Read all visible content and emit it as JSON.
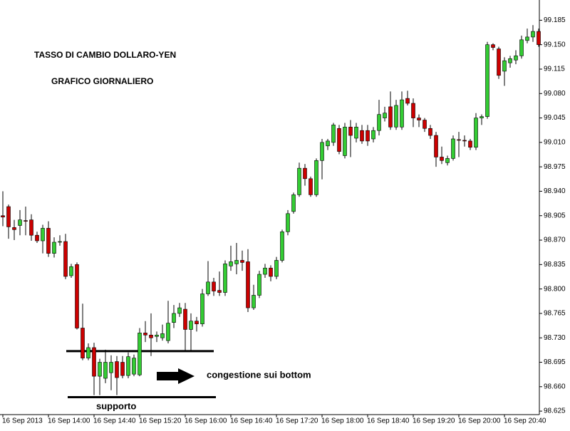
{
  "chart_data": {
    "type": "candlestick",
    "title": "TASSO DI CAMBIO DOLLARO-YEN",
    "subtitle": "GRAFICO GIORNALIERO",
    "annotations": [
      {
        "text": "congestione sui bottom"
      },
      {
        "text": "supporto"
      }
    ],
    "levels": [
      98.711,
      98.645
    ],
    "up_color": "#33cc33",
    "down_color": "#cc0000",
    "categories": [
      "16 Sep 2013",
      null,
      null,
      null,
      null,
      null,
      null,
      null,
      "16 Sep 14:00",
      null,
      null,
      null,
      null,
      null,
      null,
      null,
      "16 Sep 14:40",
      null,
      null,
      null,
      null,
      null,
      null,
      null,
      "16 Sep 15:20",
      null,
      null,
      null,
      null,
      null,
      null,
      null,
      "16 Sep 16:00",
      null,
      null,
      null,
      null,
      null,
      null,
      null,
      "16 Sep 16:40",
      null,
      null,
      null,
      null,
      null,
      null,
      null,
      "16 Sep 17:20",
      null,
      null,
      null,
      null,
      null,
      null,
      null,
      "16 Sep 18:00",
      null,
      null,
      null,
      null,
      null,
      null,
      null,
      "16 Sep 18:40",
      null,
      null,
      null,
      null,
      null,
      null,
      null,
      "16 Sep 19:20",
      null,
      null,
      null,
      null,
      null,
      null,
      null,
      "16 Sep 20:00",
      null,
      null,
      null,
      null,
      null,
      null,
      null,
      "16 Sep 20:40",
      null,
      null,
      null,
      null,
      null,
      null
    ],
    "open": [
      98.905,
      98.918,
      98.888,
      98.891,
      98.898,
      98.899,
      98.877,
      98.869,
      98.887,
      98.851,
      98.867,
      98.868,
      98.819,
      98.835,
      98.744,
      98.701,
      98.716,
      98.675,
      98.672,
      98.68,
      98.696,
      98.695,
      98.676,
      98.678,
      98.677,
      98.737,
      98.734,
      98.732,
      98.73,
      98.726,
      98.752,
      98.765,
      98.771,
      98.742,
      98.754,
      98.75,
      98.793,
      98.81,
      98.798,
      98.795,
      98.833,
      98.836,
      98.841,
      98.839,
      98.773,
      98.791,
      98.821,
      98.83,
      98.818,
      98.841,
      98.882,
      98.911,
      98.935,
      98.973,
      98.958,
      98.935,
      98.984,
      99.005,
      99.01,
      99.03,
      98.991,
      99.032,
      99.016,
      99.027,
      99.027,
      99.015,
      99.027,
      99.045,
      99.061,
      99.032,
      99.032,
      99.073,
      99.066,
      99.045,
      99.042,
      99.03,
      99.02,
      98.989,
      98.981,
      98.987,
      99.014,
      99.013,
      99.012,
      99.003,
      99.045,
      99.047,
      99.15,
      99.144,
      99.112,
      99.124,
      99.128,
      99.134,
      99.156,
      99.161,
      99.169
    ],
    "high": [
      98.94,
      98.921,
      98.899,
      98.913,
      98.918,
      98.907,
      98.882,
      98.892,
      98.897,
      98.874,
      98.877,
      98.879,
      98.836,
      98.838,
      98.779,
      98.722,
      98.723,
      98.7,
      98.713,
      98.705,
      98.704,
      98.704,
      98.709,
      98.706,
      98.744,
      98.754,
      98.765,
      98.739,
      98.749,
      98.783,
      98.777,
      98.78,
      98.78,
      98.765,
      98.76,
      98.8,
      98.84,
      98.816,
      98.825,
      98.841,
      98.862,
      98.866,
      98.855,
      98.857,
      98.806,
      98.826,
      98.836,
      98.834,
      98.846,
      98.885,
      98.913,
      98.938,
      98.981,
      98.979,
      98.961,
      98.987,
      99.015,
      99.015,
      99.038,
      99.035,
      99.038,
      99.042,
      99.038,
      99.035,
      99.035,
      99.032,
      99.071,
      99.061,
      99.083,
      99.071,
      99.083,
      99.084,
      99.073,
      99.05,
      99.045,
      99.035,
      99.025,
      99.004,
      98.991,
      99.02,
      99.025,
      99.02,
      99.015,
      99.052,
      99.05,
      99.154,
      99.152,
      99.147,
      99.132,
      99.134,
      99.142,
      99.163,
      99.173,
      99.178,
      99.173
    ],
    "low": [
      98.89,
      98.872,
      98.87,
      98.877,
      98.877,
      98.869,
      98.866,
      98.851,
      98.846,
      98.845,
      98.862,
      98.814,
      98.816,
      98.742,
      98.698,
      98.698,
      98.648,
      98.648,
      98.665,
      98.655,
      98.648,
      98.672,
      98.672,
      98.675,
      98.675,
      98.724,
      98.704,
      98.724,
      98.726,
      98.722,
      98.744,
      98.76,
      98.712,
      98.712,
      98.739,
      98.746,
      98.79,
      98.79,
      98.79,
      98.79,
      98.826,
      98.821,
      98.826,
      98.767,
      98.77,
      98.787,
      98.816,
      98.811,
      98.814,
      98.838,
      98.877,
      98.908,
      98.932,
      98.948,
      98.932,
      98.932,
      98.957,
      98.999,
      99.005,
      98.993,
      98.987,
      98.989,
      99.01,
      99.008,
      99.005,
      99.01,
      99.02,
      99.04,
      99.028,
      99.028,
      99.028,
      99.063,
      99.032,
      99.032,
      99.025,
      99.015,
      98.975,
      98.979,
      98.977,
      98.984,
      98.989,
      99.004,
      98.999,
      98.999,
      99.035,
      99.044,
      99.142,
      99.101,
      99.091,
      99.117,
      99.122,
      99.13,
      99.152,
      99.154,
      99.147
    ],
    "close": [
      98.903,
      98.889,
      98.885,
      98.899,
      98.897,
      98.877,
      98.869,
      98.887,
      98.851,
      98.867,
      98.868,
      98.818,
      98.832,
      98.744,
      98.701,
      98.716,
      98.675,
      98.695,
      98.695,
      98.695,
      98.673,
      98.676,
      98.703,
      98.701,
      98.737,
      98.734,
      98.73,
      98.734,
      98.736,
      98.751,
      98.765,
      98.773,
      98.742,
      98.754,
      98.75,
      98.793,
      98.81,
      98.797,
      98.795,
      98.836,
      98.839,
      98.841,
      98.838,
      98.773,
      98.791,
      98.821,
      98.83,
      98.818,
      98.841,
      98.882,
      98.908,
      98.935,
      98.973,
      98.958,
      98.935,
      98.984,
      99.01,
      99.012,
      99.035,
      98.997,
      99.032,
      99.02,
      99.032,
      99.012,
      99.012,
      99.027,
      99.05,
      99.052,
      99.032,
      99.063,
      99.071,
      99.066,
      99.045,
      99.042,
      99.03,
      99.02,
      98.989,
      98.984,
      98.987,
      99.015,
      99.013,
      99.012,
      99.003,
      99.045,
      99.047,
      99.15,
      99.146,
      99.106,
      99.127,
      99.13,
      99.134,
      99.157,
      99.161,
      99.169,
      99.15
    ],
    "ylim": [
      98.62,
      99.214
    ],
    "yticks": [
      98.625,
      {
        "value": 98.66,
        "label": "98.660"
      },
      98.695,
      {
        "value": 98.73,
        "label": "98.730"
      },
      98.765,
      {
        "value": 98.8,
        "label": "98.800"
      },
      98.835,
      {
        "value": 98.87,
        "label": "98.870"
      },
      98.905,
      {
        "value": 98.94,
        "label": "98.940"
      },
      98.975,
      {
        "value": 99.01,
        "label": "99.010"
      },
      99.045,
      {
        "value": 99.08,
        "label": "99.080"
      },
      99.115,
      {
        "value": 99.15,
        "label": "99.150"
      },
      99.185
    ]
  }
}
